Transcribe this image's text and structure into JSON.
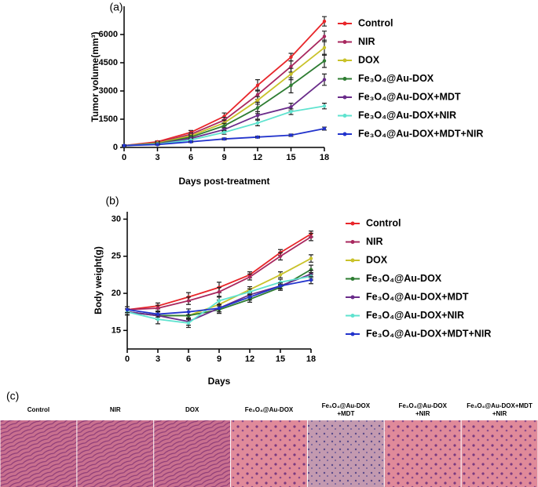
{
  "chart_data": [
    {
      "type": "line",
      "panel": "(a)",
      "x_label": "Days post-treatment",
      "y_label": "Tumor volume(mm³)",
      "x": [
        0,
        3,
        6,
        9,
        12,
        15,
        18
      ],
      "xlim": [
        0,
        18
      ],
      "xticks": [
        0,
        3,
        6,
        9,
        12,
        15,
        18
      ],
      "ylim": [
        0,
        7500
      ],
      "yticks": [
        0,
        1500,
        3000,
        4500,
        6000
      ],
      "grid": false,
      "legend": "right",
      "series": [
        {
          "name": "Control",
          "color": "#e8262a",
          "values": [
            100,
            300,
            800,
            1650,
            3300,
            4800,
            6700
          ],
          "errors": [
            30,
            50,
            100,
            180,
            300,
            200,
            250
          ]
        },
        {
          "name": "NIR",
          "color": "#a8285f",
          "values": [
            100,
            250,
            700,
            1450,
            2800,
            4300,
            5900
          ],
          "errors": [
            30,
            50,
            90,
            150,
            250,
            300,
            280
          ]
        },
        {
          "name": "DOX",
          "color": "#c9c22a",
          "values": [
            100,
            230,
            620,
            1300,
            2500,
            3900,
            5300
          ],
          "errors": [
            30,
            50,
            80,
            150,
            200,
            300,
            400
          ]
        },
        {
          "name": "Fe₃O₄@Au-DOX",
          "color": "#2e7d32",
          "values": [
            100,
            200,
            550,
            1150,
            2100,
            3300,
            4600
          ],
          "errors": [
            30,
            40,
            80,
            130,
            300,
            400,
            350
          ]
        },
        {
          "name": "Fe₃O₄@Au-DOX+MDT",
          "color": "#6a2c8a",
          "values": [
            100,
            180,
            480,
            950,
            1700,
            2150,
            3600
          ],
          "errors": [
            30,
            40,
            70,
            100,
            200,
            200,
            300
          ]
        },
        {
          "name": "Fe₃O₄@Au-DOX+NIR",
          "color": "#5fe3cf",
          "values": [
            100,
            170,
            400,
            800,
            1300,
            1900,
            2200
          ],
          "errors": [
            30,
            30,
            60,
            100,
            150,
            150,
            150
          ]
        },
        {
          "name": "Fe₃O₄@Au-DOX+MDT+NIR",
          "color": "#2233cc",
          "values": [
            100,
            150,
            300,
            450,
            550,
            650,
            1000
          ],
          "errors": [
            20,
            30,
            40,
            50,
            50,
            60,
            80
          ]
        }
      ]
    },
    {
      "type": "line",
      "panel": "(b)",
      "x_label": "Days",
      "y_label": "Body weight(g)",
      "x": [
        0,
        3,
        6,
        9,
        12,
        15,
        18
      ],
      "xlim": [
        0,
        18
      ],
      "xticks": [
        0,
        3,
        6,
        9,
        12,
        15,
        18
      ],
      "ylim": [
        12.5,
        31
      ],
      "yticks": [
        15,
        20,
        25,
        30
      ],
      "grid": false,
      "legend": "right",
      "series": [
        {
          "name": "Control",
          "color": "#e8262a",
          "values": [
            17.8,
            18.3,
            19.5,
            20.8,
            22.5,
            25.5,
            28
          ],
          "errors": [
            0.4,
            0.4,
            0.6,
            0.7,
            0.4,
            0.4,
            0.4
          ]
        },
        {
          "name": "NIR",
          "color": "#a8285f",
          "values": [
            17.8,
            18,
            19,
            20.2,
            22.2,
            25,
            27.6
          ],
          "errors": [
            0.4,
            0.4,
            0.5,
            0.6,
            0.4,
            0.5,
            0.5
          ]
        },
        {
          "name": "DOX",
          "color": "#c9c22a",
          "values": [
            17.5,
            17,
            17,
            18.5,
            20.5,
            22.5,
            24.7
          ],
          "errors": [
            0.4,
            0.5,
            0.5,
            0.6,
            0.4,
            0.4,
            0.5
          ]
        },
        {
          "name": "Fe₃O₄@Au-DOX",
          "color": "#2e7d32",
          "values": [
            17.5,
            17,
            17,
            17.8,
            19.2,
            20.8,
            23.2
          ],
          "errors": [
            0.4,
            0.5,
            0.5,
            0.5,
            0.4,
            0.4,
            0.6
          ]
        },
        {
          "name": "Fe₃O₄@Au-DOX+MDT",
          "color": "#6a2c8a",
          "values": [
            17.5,
            17,
            16.2,
            18,
            19.8,
            21,
            22.6
          ],
          "errors": [
            0.4,
            0.5,
            0.5,
            0.5,
            0.4,
            0.4,
            0.5
          ]
        },
        {
          "name": "Fe₃O₄@Au-DOX+NIR",
          "color": "#5fe3cf",
          "values": [
            17.5,
            16.5,
            16,
            19,
            20.2,
            21.5,
            22.3
          ],
          "errors": [
            0.4,
            0.6,
            0.6,
            0.5,
            0.4,
            0.4,
            0.5
          ]
        },
        {
          "name": "Fe₃O₄@Au-DOX+MDT+NIR",
          "color": "#2233cc",
          "values": [
            17.8,
            17.2,
            17.5,
            18,
            19.5,
            21,
            21.8
          ],
          "errors": [
            0.4,
            0.4,
            0.4,
            0.5,
            0.4,
            0.4,
            0.5
          ]
        }
      ]
    }
  ],
  "histology": {
    "panel": "(c)",
    "images": [
      {
        "lines": [
          "Control"
        ]
      },
      {
        "lines": [
          "NIR"
        ]
      },
      {
        "lines": [
          "DOX"
        ]
      },
      {
        "lines": [
          "Fe₃O₄@Au-DOX"
        ]
      },
      {
        "lines": [
          "Fe₃O₄@Au-DOX",
          "+MDT"
        ]
      },
      {
        "lines": [
          "Fe₃O₄@Au-DOX",
          "+NIR"
        ]
      },
      {
        "lines": [
          "Fe₃O₄@Au-DOX+MDT",
          "+NIR"
        ]
      }
    ]
  }
}
